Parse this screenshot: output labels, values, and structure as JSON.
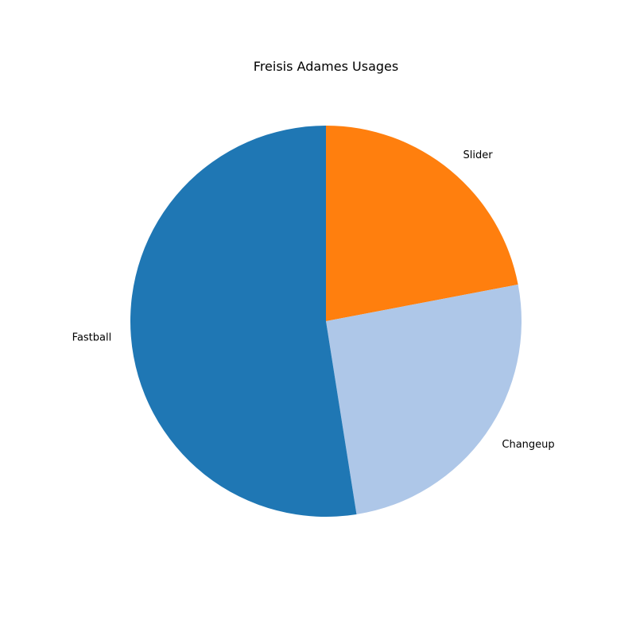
{
  "chart_data": {
    "type": "pie",
    "title": "Freisis Adames Usages",
    "start_angle_deg": 90,
    "direction": "clockwise",
    "slices": [
      {
        "label": "Slider",
        "value": 22,
        "color": "#ff7f0e"
      },
      {
        "label": "Changeup",
        "value": 25.5,
        "color": "#aec7e8"
      },
      {
        "label": "Fastball",
        "value": 52.5,
        "color": "#1f77b4"
      }
    ]
  }
}
